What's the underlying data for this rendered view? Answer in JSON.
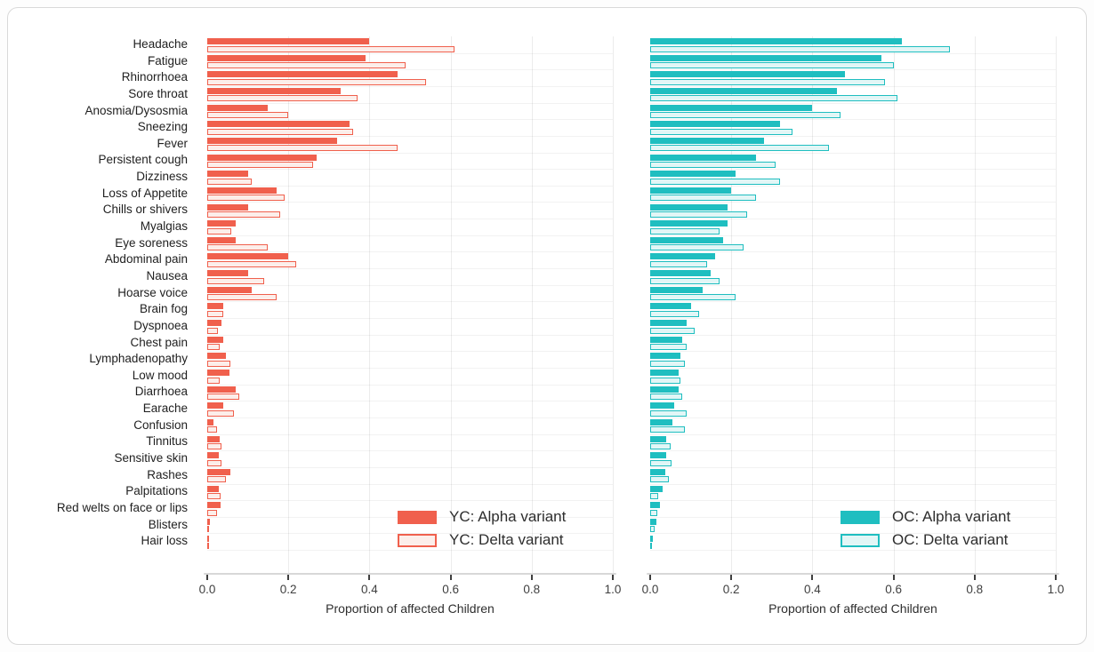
{
  "chart_data": {
    "type": "bar",
    "orientation": "horizontal",
    "title": "",
    "xlabel": "Proportion of affected Children",
    "xlim": [
      0,
      1
    ],
    "x_ticks": [
      0.0,
      0.2,
      0.4,
      0.6,
      0.8,
      1.0
    ],
    "grid": true,
    "legend_position": "bottom-right-inside",
    "categories": [
      "Headache",
      "Fatigue",
      "Rhinorrhoea",
      "Sore throat",
      "Anosmia/Dysosmia",
      "Sneezing",
      "Fever",
      "Persistent cough",
      "Dizziness",
      "Loss of Appetite",
      "Chills or shivers",
      "Myalgias",
      "Eye soreness",
      "Abdominal pain",
      "Nausea",
      "Hoarse voice",
      "Brain fog",
      "Dyspnoea",
      "Chest pain",
      "Lymphadenopathy",
      "Low mood",
      "Diarrhoea",
      "Earache",
      "Confusion",
      "Tinnitus",
      "Sensitive skin",
      "Rashes",
      "Palpitations",
      "Red welts on face or lips",
      "Blisters",
      "Hair loss"
    ],
    "panels": [
      {
        "name": "younger-children",
        "accent_color": "#F0604D",
        "light_fill": "#FCEEEA",
        "series": [
          {
            "name": "YC: Alpha variant",
            "style": "solid",
            "values": [
              0.4,
              0.39,
              0.47,
              0.33,
              0.15,
              0.35,
              0.32,
              0.27,
              0.1,
              0.17,
              0.1,
              0.07,
              0.07,
              0.2,
              0.1,
              0.11,
              0.04,
              0.035,
              0.04,
              0.045,
              0.055,
              0.07,
              0.04,
              0.015,
              0.03,
              0.028,
              0.058,
              0.028,
              0.032,
              0.006,
              0.003
            ]
          },
          {
            "name": "YC: Delta variant",
            "style": "outline",
            "values": [
              0.61,
              0.49,
              0.54,
              0.37,
              0.2,
              0.36,
              0.47,
              0.26,
              0.11,
              0.19,
              0.18,
              0.06,
              0.15,
              0.22,
              0.14,
              0.17,
              0.04,
              0.027,
              0.03,
              0.057,
              0.03,
              0.08,
              0.065,
              0.025,
              0.035,
              0.035,
              0.045,
              0.032,
              0.025,
              0.004,
              0.004
            ]
          }
        ]
      },
      {
        "name": "older-children",
        "accent_color": "#1FBEC0",
        "light_fill": "#E2F6F6",
        "series": [
          {
            "name": "OC: Alpha variant",
            "style": "solid",
            "values": [
              0.62,
              0.57,
              0.48,
              0.46,
              0.4,
              0.32,
              0.28,
              0.26,
              0.21,
              0.2,
              0.19,
              0.19,
              0.18,
              0.16,
              0.15,
              0.13,
              0.1,
              0.09,
              0.08,
              0.075,
              0.07,
              0.07,
              0.06,
              0.055,
              0.04,
              0.04,
              0.037,
              0.03,
              0.024,
              0.015,
              0.007
            ]
          },
          {
            "name": "OC: Delta variant",
            "style": "outline",
            "values": [
              0.74,
              0.6,
              0.58,
              0.61,
              0.47,
              0.35,
              0.44,
              0.31,
              0.32,
              0.26,
              0.24,
              0.17,
              0.23,
              0.14,
              0.17,
              0.21,
              0.12,
              0.11,
              0.09,
              0.085,
              0.075,
              0.08,
              0.09,
              0.085,
              0.05,
              0.052,
              0.047,
              0.02,
              0.017,
              0.01,
              0.005
            ]
          }
        ]
      }
    ]
  }
}
